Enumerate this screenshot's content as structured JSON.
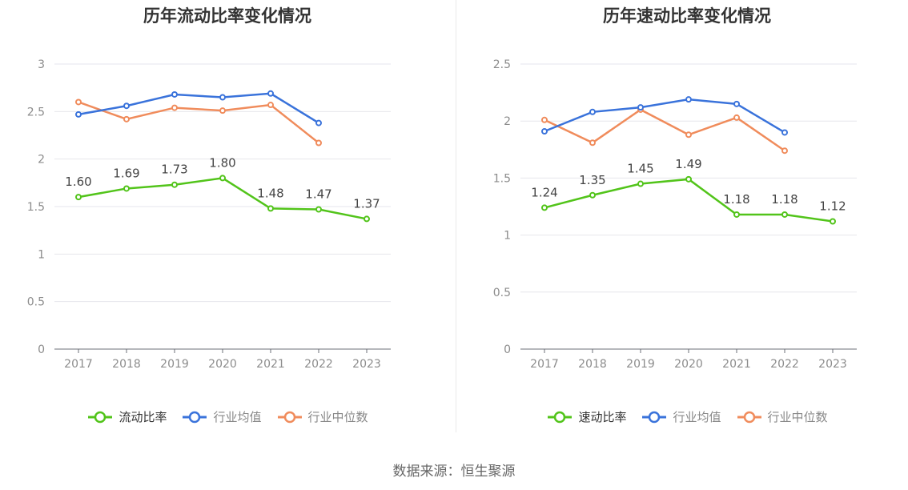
{
  "source_label": "数据来源：恒生聚源",
  "charts": [
    {
      "title": "历年流动比率变化情况",
      "legend": [
        {
          "label": "流动比率",
          "color": "#52c41a",
          "active": true
        },
        {
          "label": "行业均值",
          "color": "#3a73db",
          "active": false
        },
        {
          "label": "行业中位数",
          "color": "#f08c5c",
          "active": false
        }
      ]
    },
    {
      "title": "历年速动比率变化情况",
      "legend": [
        {
          "label": "速动比率",
          "color": "#52c41a",
          "active": true
        },
        {
          "label": "行业均值",
          "color": "#3a73db",
          "active": false
        },
        {
          "label": "行业中位数",
          "color": "#f08c5c",
          "active": false
        }
      ]
    }
  ],
  "chart_data": [
    {
      "type": "line",
      "title": "历年流动比率变化情况",
      "xlabel": "",
      "ylabel": "",
      "ylim": [
        0,
        3
      ],
      "yticks": [
        "0",
        "0.5",
        "1",
        "1.5",
        "2",
        "2.5",
        "3"
      ],
      "ytick_values": [
        0,
        0.5,
        1,
        1.5,
        2,
        2.5,
        3
      ],
      "categories": [
        "2017",
        "2018",
        "2019",
        "2020",
        "2021",
        "2022",
        "2023"
      ],
      "grid": true,
      "legend_position": "bottom",
      "series": [
        {
          "name": "流动比率",
          "color": "#52c41a",
          "values": [
            1.6,
            1.69,
            1.73,
            1.8,
            1.48,
            1.47,
            1.37
          ],
          "labels": [
            "1.60",
            "1.69",
            "1.73",
            "1.80",
            "1.48",
            "1.47",
            "1.37"
          ]
        },
        {
          "name": "行业均值",
          "color": "#3a73db",
          "values": [
            2.47,
            2.56,
            2.68,
            2.65,
            2.69,
            2.38,
            null
          ]
        },
        {
          "name": "行业中位数",
          "color": "#f08c5c",
          "values": [
            2.6,
            2.42,
            2.54,
            2.51,
            2.57,
            2.17,
            null
          ]
        }
      ]
    },
    {
      "type": "line",
      "title": "历年速动比率变化情况",
      "xlabel": "",
      "ylabel": "",
      "ylim": [
        0,
        2.5
      ],
      "yticks": [
        "0",
        "0.5",
        "1",
        "1.5",
        "2",
        "2.5"
      ],
      "ytick_values": [
        0,
        0.5,
        1,
        1.5,
        2,
        2.5
      ],
      "categories": [
        "2017",
        "2018",
        "2019",
        "2020",
        "2021",
        "2022",
        "2023"
      ],
      "grid": true,
      "legend_position": "bottom",
      "series": [
        {
          "name": "速动比率",
          "color": "#52c41a",
          "values": [
            1.24,
            1.35,
            1.45,
            1.49,
            1.18,
            1.18,
            1.12
          ],
          "labels": [
            "1.24",
            "1.35",
            "1.45",
            "1.49",
            "1.18",
            "1.18",
            "1.12"
          ]
        },
        {
          "name": "行业均值",
          "color": "#3a73db",
          "values": [
            1.91,
            2.08,
            2.12,
            2.19,
            2.15,
            1.9,
            null
          ]
        },
        {
          "name": "行业中位数",
          "color": "#f08c5c",
          "values": [
            2.01,
            1.81,
            2.1,
            1.88,
            2.03,
            1.74,
            null
          ]
        }
      ]
    }
  ]
}
